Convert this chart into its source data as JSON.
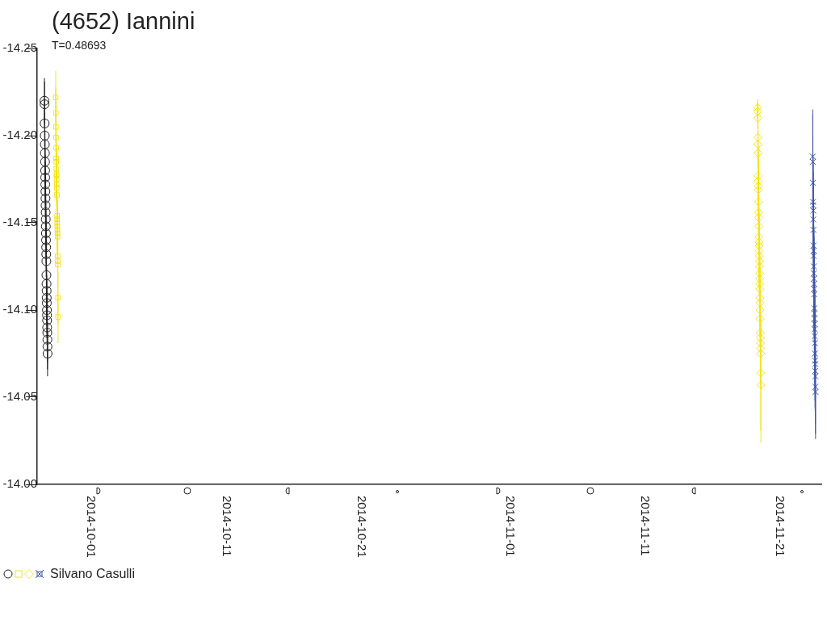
{
  "chart_data": {
    "type": "scatter",
    "title": "(4652) Iannini",
    "subtitle": "T=0.48693",
    "xlim": [
      "2014-09-27T08:00",
      "2014-11-24T10:00"
    ],
    "xticks": [
      "2014-10-01",
      "2014-10-11",
      "2014-10-21",
      "2014-11-01",
      "2014-11-11",
      "2014-11-21"
    ],
    "ylim": [
      -14.0,
      -14.25
    ],
    "yticks": [
      -14.25,
      {
        "value": -14.2,
        "label": "-14.20"
      },
      -14.15,
      {
        "value": -14.1,
        "label": "-14.10"
      },
      -14.05,
      {
        "value": -14.0,
        "label": "-14.00"
      }
    ],
    "legend": "bottom left",
    "series": [
      {
        "name": "Silvano Casulli",
        "color": "#222222",
        "marker": "circle",
        "x": [
          "2014-09-27T21:00",
          "2014-09-27T21:10",
          "2014-09-27T21:20",
          "2014-09-27T21:30",
          "2014-09-27T21:40",
          "2014-09-27T21:50",
          "2014-09-27T22:00",
          "2014-09-27T22:10",
          "2014-09-27T22:20",
          "2014-09-27T22:30",
          "2014-09-27T22:40",
          "2014-09-27T22:50",
          "2014-09-27T23:00",
          "2014-09-27T23:10",
          "2014-09-27T23:20",
          "2014-09-27T23:30",
          "2014-09-27T23:40",
          "2014-09-27T23:50",
          "2014-09-28T00:00",
          "2014-09-28T00:10",
          "2014-09-28T00:20",
          "2014-09-28T00:30",
          "2014-09-28T00:40",
          "2014-09-28T00:50",
          "2014-09-28T01:00",
          "2014-09-28T01:10",
          "2014-09-28T01:20",
          "2014-09-28T01:30",
          "2014-09-28T01:40",
          "2014-09-28T01:50",
          "2014-09-28T02:00",
          "2014-09-28T02:10",
          "2014-09-28T02:20",
          "2014-09-28T02:30"
        ],
        "values": [
          -14.22,
          -14.218,
          -14.207,
          -14.2,
          -14.195,
          -14.19,
          -14.185,
          -14.18,
          -14.176,
          -14.172,
          -14.168,
          -14.164,
          -14.16,
          -14.156,
          -14.152,
          -14.148,
          -14.144,
          -14.14,
          -14.136,
          -14.132,
          -14.128,
          -14.12,
          -14.115,
          -14.111,
          -14.107,
          -14.104,
          -14.1,
          -14.097,
          -14.094,
          -14.09,
          -14.087,
          -14.083,
          -14.079,
          -14.075
        ],
        "errors": [
          0.013,
          0.013,
          0.013,
          0.013,
          0.013,
          0.013,
          0.013,
          0.013,
          0.013,
          0.013,
          0.013,
          0.013,
          0.013,
          0.013,
          0.013,
          0.013,
          0.013,
          0.013,
          0.013,
          0.013,
          0.013,
          0.013,
          0.013,
          0.013,
          0.013,
          0.013,
          0.013,
          0.013,
          0.013,
          0.013,
          0.013,
          0.013,
          0.013,
          0.013
        ]
      },
      {
        "color": "#f2e41c",
        "marker": "square",
        "x": [
          "2014-09-28T17:00",
          "2014-09-28T17:10",
          "2014-09-28T17:20",
          "2014-09-28T17:30",
          "2014-09-28T17:40",
          "2014-09-28T17:50",
          "2014-09-28T18:00",
          "2014-09-28T18:10",
          "2014-09-28T18:20",
          "2014-09-28T18:30",
          "2014-09-28T18:40",
          "2014-09-28T18:50",
          "2014-09-28T19:00",
          "2014-09-28T19:10",
          "2014-09-28T19:20",
          "2014-09-28T19:30",
          "2014-09-28T19:40",
          "2014-09-28T19:50",
          "2014-09-28T20:00",
          "2014-09-28T20:10",
          "2014-09-28T20:20",
          "2014-09-28T20:30",
          "2014-09-28T20:40",
          "2014-09-28T20:50",
          "2014-09-28T21:00",
          "2014-09-28T21:10"
        ],
        "values": [
          -14.222,
          -14.213,
          -14.205,
          -14.199,
          -14.193,
          -14.187,
          -14.185,
          -14.181,
          -14.178,
          -14.177,
          -14.175,
          -14.172,
          -14.17,
          -14.166,
          -14.154,
          -14.152,
          -14.15,
          -14.148,
          -14.146,
          -14.144,
          -14.142,
          -14.131,
          -14.128,
          -14.126,
          -14.107,
          -14.096
        ],
        "errors": [
          0.015,
          0.015,
          0.015,
          0.015,
          0.015,
          0.015,
          0.015,
          0.015,
          0.015,
          0.015,
          0.015,
          0.015,
          0.015,
          0.015,
          0.015,
          0.015,
          0.015,
          0.015,
          0.015,
          0.015,
          0.015,
          0.015,
          0.015,
          0.015,
          0.015,
          0.015
        ]
      },
      {
        "color": "#f2e41c",
        "marker": "diamond",
        "x": [
          "2014-11-19T16:00",
          "2014-11-19T16:10",
          "2014-11-19T16:20",
          "2014-11-19T16:30",
          "2014-11-19T16:40",
          "2014-11-19T16:50",
          "2014-11-19T17:00",
          "2014-11-19T17:10",
          "2014-11-19T17:20",
          "2014-11-19T17:30",
          "2014-11-19T17:40",
          "2014-11-19T17:50",
          "2014-11-19T18:00",
          "2014-11-19T18:10",
          "2014-11-19T18:20",
          "2014-11-19T18:30",
          "2014-11-19T18:40",
          "2014-11-19T18:50",
          "2014-11-19T19:00",
          "2014-11-19T19:10",
          "2014-11-19T19:20",
          "2014-11-19T19:30",
          "2014-11-19T19:40",
          "2014-11-19T19:50",
          "2014-11-19T20:00",
          "2014-11-19T20:10",
          "2014-11-19T20:20",
          "2014-11-19T20:30",
          "2014-11-19T20:40",
          "2014-11-19T20:50",
          "2014-11-19T21:00",
          "2014-11-19T21:10",
          "2014-11-19T21:20",
          "2014-11-19T21:30",
          "2014-11-19T21:40",
          "2014-11-19T21:50"
        ],
        "values": [
          -14.216,
          -14.214,
          -14.21,
          -14.199,
          -14.195,
          -14.19,
          -14.177,
          -14.174,
          -14.171,
          -14.169,
          -14.162,
          -14.156,
          -14.153,
          -14.148,
          -14.142,
          -14.139,
          -14.137,
          -14.134,
          -14.131,
          -14.128,
          -14.125,
          -14.121,
          -14.118,
          -14.115,
          -14.112,
          -14.107,
          -14.104,
          -14.1,
          -14.095,
          -14.087,
          -14.084,
          -14.081,
          -14.078,
          -14.075,
          -14.064,
          -14.057
        ],
        "errors": [
          0.005,
          0.005,
          0.005,
          0.02,
          0.02,
          0.02,
          0.02,
          0.02,
          0.02,
          0.02,
          0.02,
          0.02,
          0.02,
          0.02,
          0.02,
          0.02,
          0.02,
          0.02,
          0.02,
          0.02,
          0.02,
          0.02,
          0.02,
          0.02,
          0.02,
          0.02,
          0.02,
          0.02,
          0.02,
          0.02,
          0.02,
          0.02,
          0.02,
          0.02,
          0.033,
          0.033
        ]
      },
      {
        "color": "#3f56a6",
        "marker": "cross",
        "x": [
          "2014-11-23T18:00",
          "2014-11-23T18:10",
          "2014-11-23T18:20",
          "2014-11-23T18:30",
          "2014-11-23T18:40",
          "2014-11-23T18:50",
          "2014-11-23T19:00",
          "2014-11-23T19:10",
          "2014-11-23T19:20",
          "2014-11-23T19:30",
          "2014-11-23T19:40",
          "2014-11-23T19:50",
          "2014-11-23T20:00",
          "2014-11-23T20:10",
          "2014-11-23T20:20",
          "2014-11-23T20:30",
          "2014-11-23T20:40",
          "2014-11-23T20:50",
          "2014-11-23T21:00",
          "2014-11-23T21:10",
          "2014-11-23T21:20",
          "2014-11-23T21:30",
          "2014-11-23T21:40",
          "2014-11-23T21:50",
          "2014-11-23T22:00",
          "2014-11-23T22:10",
          "2014-11-23T22:20",
          "2014-11-23T22:30",
          "2014-11-23T22:40",
          "2014-11-23T22:50",
          "2014-11-23T23:00"
        ],
        "values": [
          -14.188,
          -14.185,
          -14.173,
          -14.162,
          -14.16,
          -14.157,
          -14.152,
          -14.146,
          -14.137,
          -14.134,
          -14.131,
          -14.125,
          -14.121,
          -14.118,
          -14.115,
          -14.112,
          -14.109,
          -14.101,
          -14.098,
          -14.095,
          -14.092,
          -14.089,
          -14.085,
          -14.081,
          -14.075,
          -14.071,
          -14.069,
          -14.065,
          -14.062,
          -14.056,
          -14.053
        ],
        "errors": [
          0.027,
          0.027,
          0.027,
          0.027,
          0.027,
          0.027,
          0.027,
          0.027,
          0.027,
          0.027,
          0.027,
          0.027,
          0.027,
          0.027,
          0.027,
          0.027,
          0.027,
          0.027,
          0.027,
          0.027,
          0.027,
          0.027,
          0.027,
          0.027,
          0.027,
          0.027,
          0.027,
          0.027,
          0.027,
          0.027,
          0.027
        ]
      }
    ]
  }
}
